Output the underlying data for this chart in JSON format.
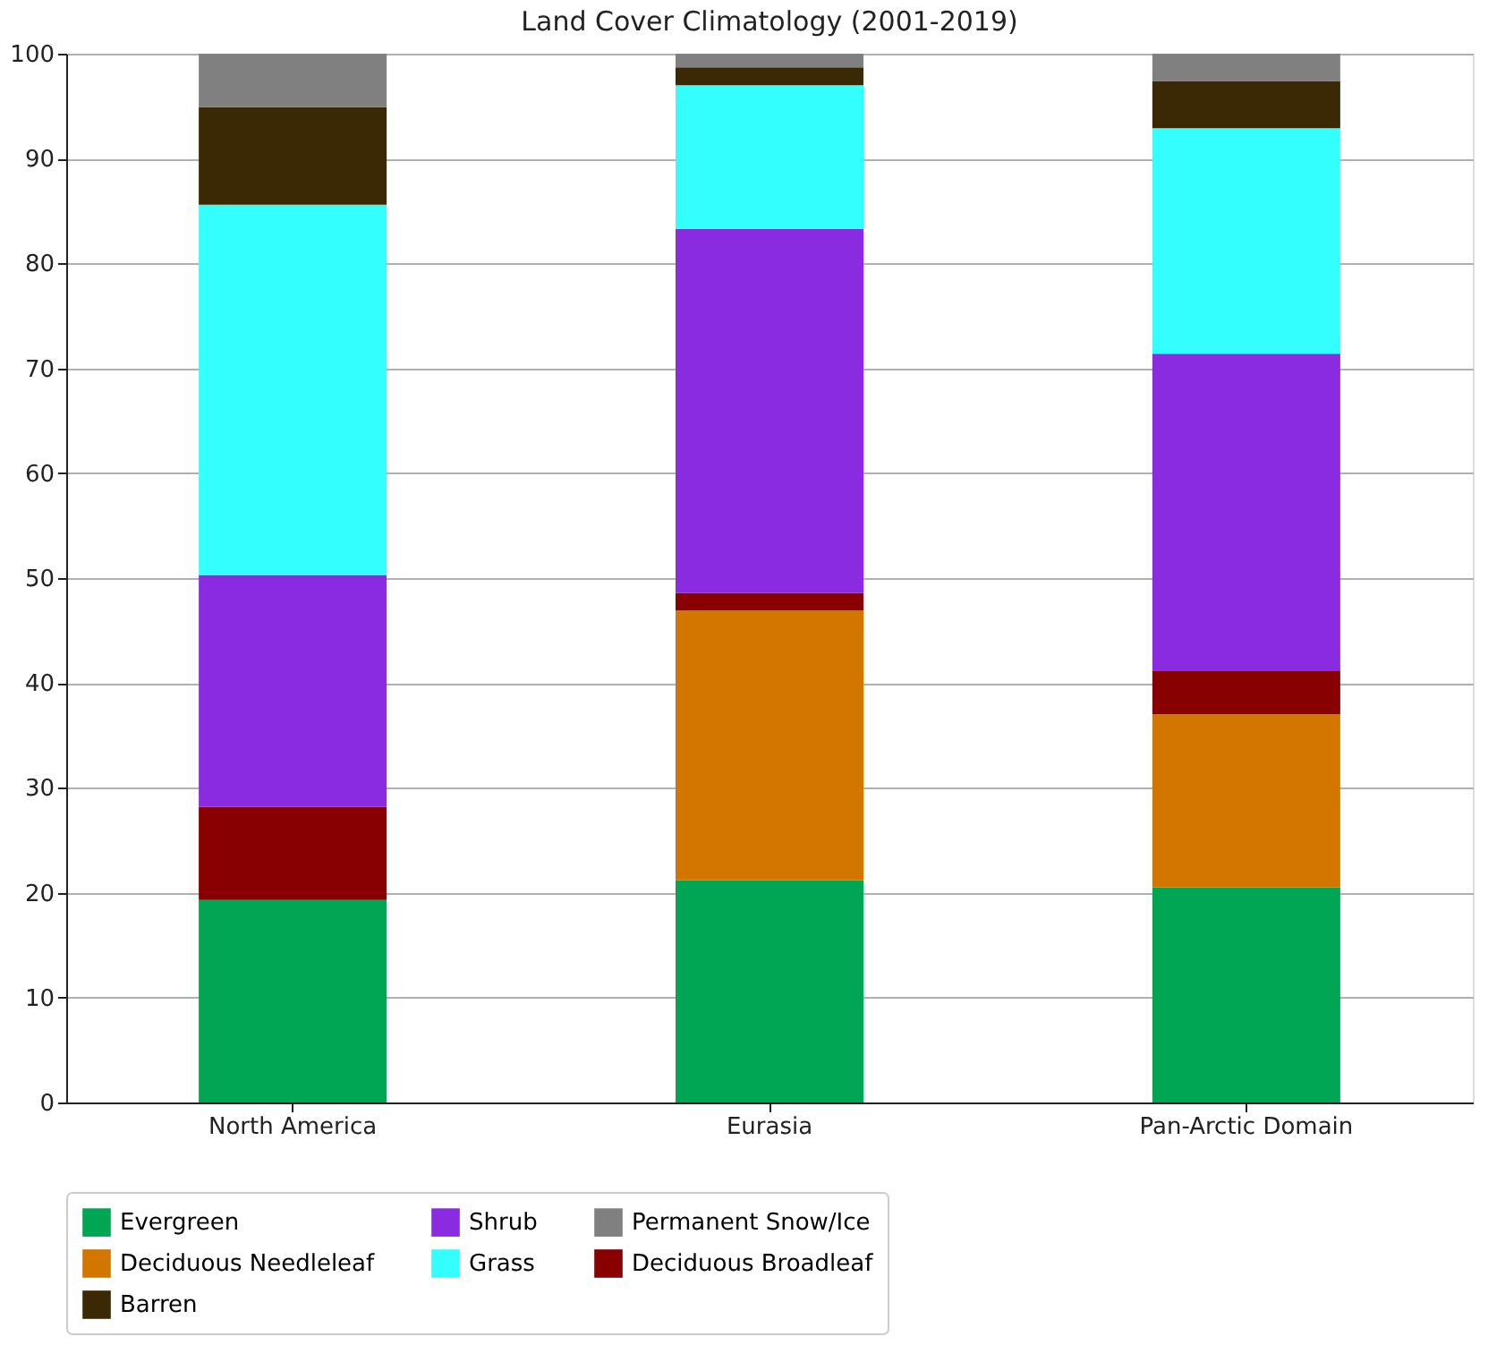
{
  "chart_data": {
    "type": "bar",
    "title": "Land Cover Climatology (2001-2019)",
    "stacked": true,
    "categories": [
      "North America",
      "Eurasia",
      "Pan-Arctic Domain"
    ],
    "series": [
      {
        "name": "Evergreen",
        "color": "#00a653",
        "values": [
          19.3,
          21.2,
          20.5
        ]
      },
      {
        "name": "Deciduous Needleleaf",
        "color": "#d37600",
        "values": [
          0,
          25.7,
          16.5
        ]
      },
      {
        "name": "Deciduous Broadleaf",
        "color": "#880000",
        "values": [
          8.9,
          1.7,
          4.2
        ]
      },
      {
        "name": "Shrub",
        "color": "#8a2be2",
        "values": [
          22.1,
          34.7,
          30.2
        ]
      },
      {
        "name": "Grass",
        "color": "#33ffff",
        "values": [
          35.3,
          13.7,
          21.5
        ]
      },
      {
        "name": "Barren",
        "color": "#3a2904",
        "values": [
          9.3,
          1.7,
          4.5
        ]
      },
      {
        "name": "Permanent Snow/Ice",
        "color": "#808080",
        "values": [
          5.1,
          1.3,
          2.6
        ]
      }
    ],
    "ylim": [
      0,
      100
    ],
    "yticks": [
      0,
      10,
      20,
      30,
      40,
      50,
      60,
      70,
      80,
      90,
      100
    ],
    "grid": "y",
    "legend": "bottom"
  }
}
